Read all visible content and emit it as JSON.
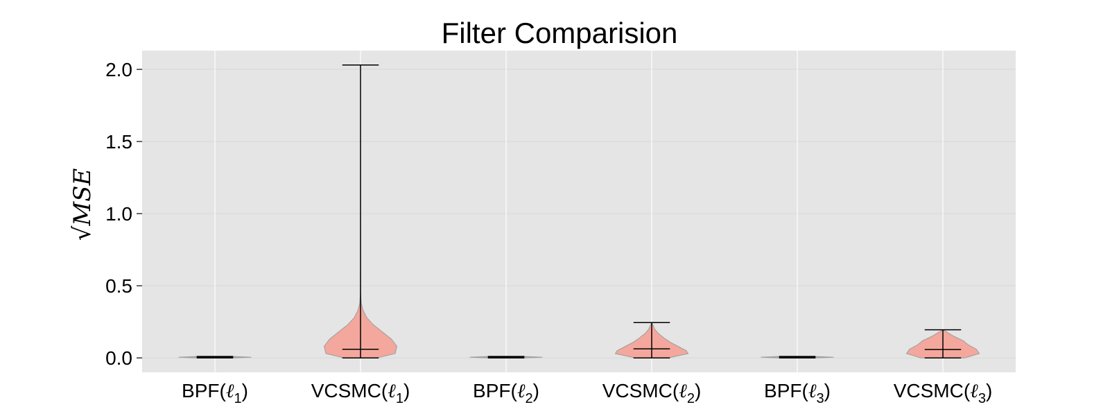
{
  "chart_data": {
    "type": "violin",
    "title": "Filter Comparision",
    "ylabel": "√MSE",
    "ylim": [
      -0.1,
      2.13
    ],
    "yticks": [
      "0.0",
      "0.5",
      "1.0",
      "1.5",
      "2.0"
    ],
    "grid": true,
    "categories": [
      {
        "base": "BPF",
        "ell": "ℓ",
        "sub": "1"
      },
      {
        "base": "VCSMC",
        "ell": "ℓ",
        "sub": "1"
      },
      {
        "base": "BPF",
        "ell": "ℓ",
        "sub": "2"
      },
      {
        "base": "VCSMC",
        "ell": "ℓ",
        "sub": "2"
      },
      {
        "base": "BPF",
        "ell": "ℓ",
        "sub": "3"
      },
      {
        "base": "VCSMC",
        "ell": "ℓ",
        "sub": "3"
      }
    ],
    "series": [
      {
        "min": 0.0,
        "max": 0.01,
        "median": 0.005,
        "color": "#9aa8c8",
        "profile": [
          [
            0.0,
            0.5
          ],
          [
            0.005,
            1.0
          ],
          [
            0.01,
            0.5
          ]
        ]
      },
      {
        "min": 0.0,
        "max": 2.03,
        "median": 0.06,
        "color": "#f4a398",
        "profile": [
          [
            0.0,
            0.45
          ],
          [
            0.03,
            0.95
          ],
          [
            0.08,
            1.0
          ],
          [
            0.13,
            0.85
          ],
          [
            0.18,
            0.6
          ],
          [
            0.23,
            0.35
          ],
          [
            0.28,
            0.17
          ],
          [
            0.33,
            0.07
          ],
          [
            0.38,
            0.02
          ],
          [
            0.45,
            0.004
          ],
          [
            0.7,
            0.002
          ],
          [
            2.03,
            0.0
          ]
        ]
      },
      {
        "min": 0.0,
        "max": 0.01,
        "median": 0.005,
        "color": "#9aa8c8",
        "profile": [
          [
            0.0,
            0.5
          ],
          [
            0.005,
            1.0
          ],
          [
            0.01,
            0.5
          ]
        ]
      },
      {
        "min": 0.0,
        "max": 0.245,
        "median": 0.063,
        "color": "#f4a398",
        "profile": [
          [
            0.0,
            0.45
          ],
          [
            0.03,
            1.0
          ],
          [
            0.05,
            0.95
          ],
          [
            0.08,
            0.72
          ],
          [
            0.11,
            0.5
          ],
          [
            0.14,
            0.33
          ],
          [
            0.17,
            0.18
          ],
          [
            0.2,
            0.08
          ],
          [
            0.23,
            0.03
          ],
          [
            0.245,
            0.0
          ]
        ]
      },
      {
        "min": 0.0,
        "max": 0.01,
        "median": 0.005,
        "color": "#9aa8c8",
        "profile": [
          [
            0.0,
            0.5
          ],
          [
            0.005,
            1.0
          ],
          [
            0.01,
            0.5
          ]
        ]
      },
      {
        "min": 0.0,
        "max": 0.195,
        "median": 0.058,
        "color": "#f4a398",
        "profile": [
          [
            0.0,
            0.6
          ],
          [
            0.03,
            1.0
          ],
          [
            0.06,
            0.92
          ],
          [
            0.09,
            0.7
          ],
          [
            0.12,
            0.55
          ],
          [
            0.15,
            0.3
          ],
          [
            0.18,
            0.1
          ],
          [
            0.195,
            0.0
          ]
        ]
      }
    ]
  }
}
